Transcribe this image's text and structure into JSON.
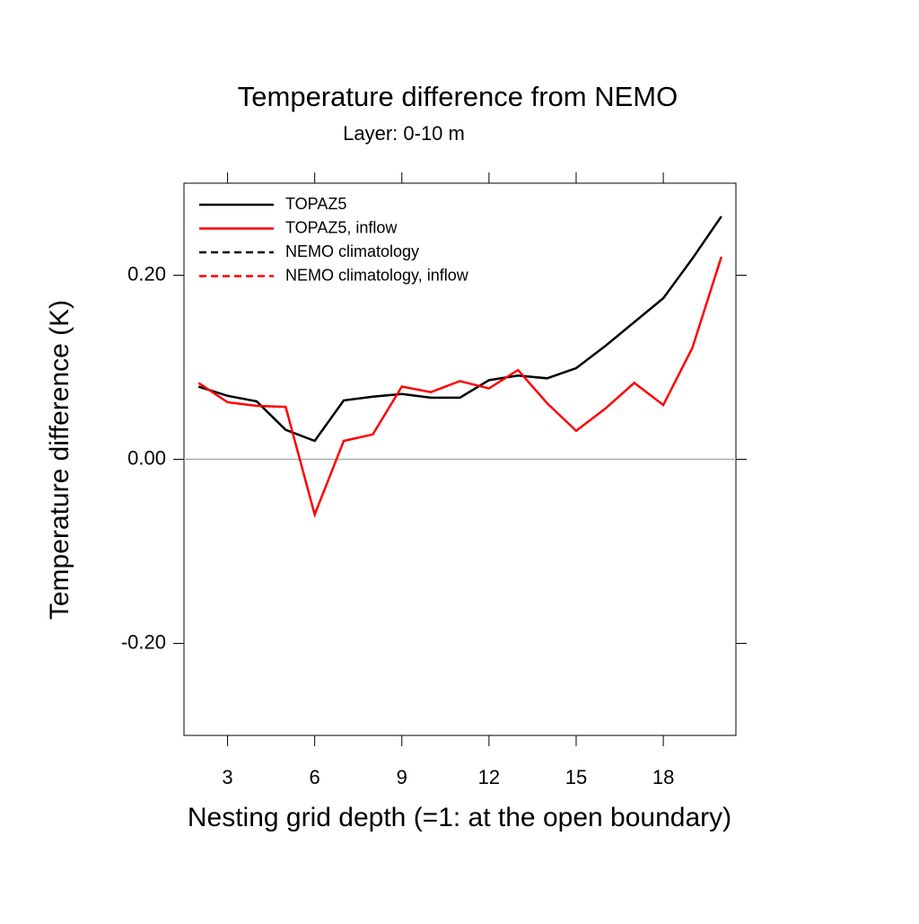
{
  "chart_data": {
    "type": "line",
    "title": "Temperature difference from NEMO",
    "subtitle": "Layer: 0-10 m",
    "x_label": "Nesting grid depth (=1: at the open boundary)",
    "y_label": "Temperature difference (K)",
    "x": [
      2,
      3,
      4,
      5,
      6,
      7,
      8,
      9,
      10,
      11,
      12,
      13,
      14,
      15,
      16,
      17,
      18,
      19,
      20
    ],
    "series": [
      {
        "name": "TOPAZ5",
        "color": "#000000",
        "dashed": false,
        "values": [
          0.079,
          0.069,
          0.063,
          0.032,
          0.02,
          0.064,
          0.068,
          0.071,
          0.067,
          0.067,
          0.086,
          0.091,
          0.088,
          0.099,
          0.123,
          0.149,
          0.175,
          0.218,
          0.264
        ]
      },
      {
        "name": "TOPAZ5, inflow",
        "color": "#ff0000",
        "dashed": false,
        "values": [
          0.083,
          0.062,
          0.058,
          0.057,
          -0.06,
          0.02,
          0.027,
          0.079,
          0.073,
          0.085,
          0.077,
          0.097,
          0.061,
          0.031,
          0.055,
          0.083,
          0.059,
          0.121,
          0.22
        ]
      },
      {
        "name": "NEMO climatology",
        "color": "#000000",
        "dashed": true,
        "values": [
          null,
          null,
          null,
          null,
          null,
          null,
          null,
          null,
          null,
          null,
          null,
          null,
          null,
          null,
          null,
          null,
          null,
          null,
          null
        ]
      },
      {
        "name": "NEMO climatology, inflow",
        "color": "#ff0000",
        "dashed": true,
        "values": [
          null,
          null,
          null,
          null,
          null,
          null,
          null,
          null,
          null,
          null,
          null,
          null,
          null,
          null,
          null,
          null,
          null,
          null,
          null
        ]
      }
    ],
    "xlim": [
      1.5,
      20.5
    ],
    "ylim": [
      -0.3,
      0.3
    ],
    "xticks": [
      3,
      6,
      9,
      12,
      15,
      18
    ],
    "yticks": [
      {
        "value": -0.2,
        "label": "-0.20"
      },
      {
        "value": 0,
        "label": "0.00"
      },
      {
        "value": 0.2,
        "label": "0.20"
      }
    ],
    "reference_line": 0,
    "legend": "upper left"
  }
}
